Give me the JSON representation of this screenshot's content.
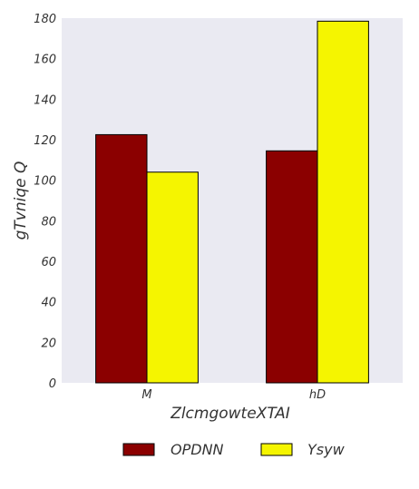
{
  "chart_data": {
    "type": "bar",
    "categories": [
      "M",
      "hD"
    ],
    "series": [
      {
        "name": "OPDNN",
        "values": [
          122.5,
          114.5
        ],
        "color": "#8b0000"
      },
      {
        "name": "Ysyw",
        "values": [
          104,
          178.5
        ],
        "color": "#f5f500"
      }
    ],
    "xlabel": "ZlcmgowteXTAI",
    "ylabel": "gTvniqe Q",
    "ylim": [
      0,
      180
    ],
    "yticks": [
      0,
      20,
      40,
      60,
      80,
      100,
      120,
      140,
      160,
      180
    ],
    "grid": false,
    "legend_position": "bottom-center",
    "background_color": "#eaeaf2",
    "bar_edge_color": "#000000"
  }
}
